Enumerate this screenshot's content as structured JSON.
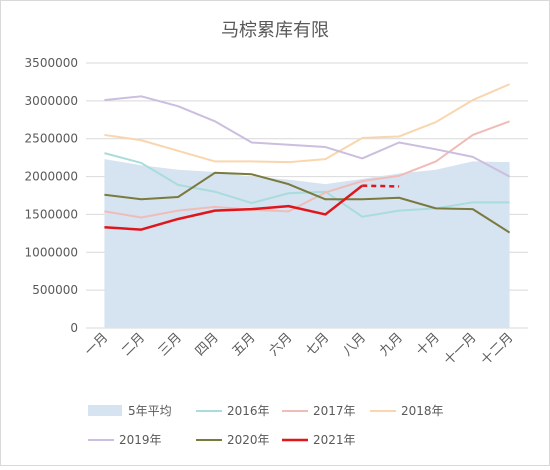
{
  "chart_data": {
    "type": "line",
    "title": "马棕累库有限",
    "categories": [
      "一月",
      "二月",
      "三月",
      "四月",
      "五月",
      "六月",
      "七月",
      "八月",
      "九月",
      "十月",
      "十一月",
      "十二月"
    ],
    "ylim": [
      0,
      3500000
    ],
    "yticks": [
      0,
      500000,
      1000000,
      1500000,
      2000000,
      2500000,
      3000000,
      3500000
    ],
    "ytick_labels": [
      "0",
      "500000",
      "1000000",
      "1500000",
      "2000000",
      "2500000",
      "3000000",
      "3500000"
    ],
    "grid": true,
    "legend_position": "bottom",
    "series": [
      {
        "name": "5年平均",
        "kind": "area",
        "color": "#d6e3f1",
        "values": [
          2230000,
          2150000,
          2090000,
          2060000,
          2000000,
          1960000,
          1900000,
          1970000,
          2040000,
          2090000,
          2200000,
          2190000
        ]
      },
      {
        "name": "2016年",
        "kind": "line",
        "color": "#a9dcdc",
        "values": [
          2310000,
          2180000,
          1890000,
          1800000,
          1650000,
          1780000,
          1800000,
          1470000,
          1550000,
          1580000,
          1660000,
          1660000
        ]
      },
      {
        "name": "2017年",
        "kind": "line",
        "color": "#f0bcb8",
        "values": [
          1540000,
          1460000,
          1550000,
          1600000,
          1560000,
          1540000,
          1790000,
          1940000,
          2010000,
          2200000,
          2550000,
          2730000
        ]
      },
      {
        "name": "2018年",
        "kind": "line",
        "color": "#f9d6ae",
        "values": [
          2550000,
          2480000,
          2340000,
          2200000,
          2200000,
          2190000,
          2230000,
          2510000,
          2530000,
          2720000,
          3010000,
          3220000
        ]
      },
      {
        "name": "2019年",
        "kind": "line",
        "color": "#cbbedf",
        "values": [
          3010000,
          3060000,
          2930000,
          2730000,
          2450000,
          2420000,
          2390000,
          2240000,
          2450000,
          2360000,
          2260000,
          2000000
        ]
      },
      {
        "name": "2020年",
        "kind": "line",
        "color": "#7a7a3e",
        "values": [
          1760000,
          1700000,
          1730000,
          2050000,
          2030000,
          1900000,
          1700000,
          1700000,
          1720000,
          1580000,
          1570000,
          1260000
        ]
      },
      {
        "name": "2021年",
        "kind": "line",
        "color": "#e0161c",
        "values": [
          1330000,
          1300000,
          1440000,
          1550000,
          1570000,
          1610000,
          1500000,
          1880000,
          null,
          null,
          null,
          null
        ],
        "forecast": [
          null,
          null,
          null,
          null,
          null,
          null,
          null,
          1880000,
          1870000,
          null,
          null,
          null
        ]
      }
    ]
  },
  "colors": {
    "grid": "#d9d9d9",
    "axis_text": "#595959",
    "title_text": "#595959",
    "border": "#d9d9d9"
  }
}
